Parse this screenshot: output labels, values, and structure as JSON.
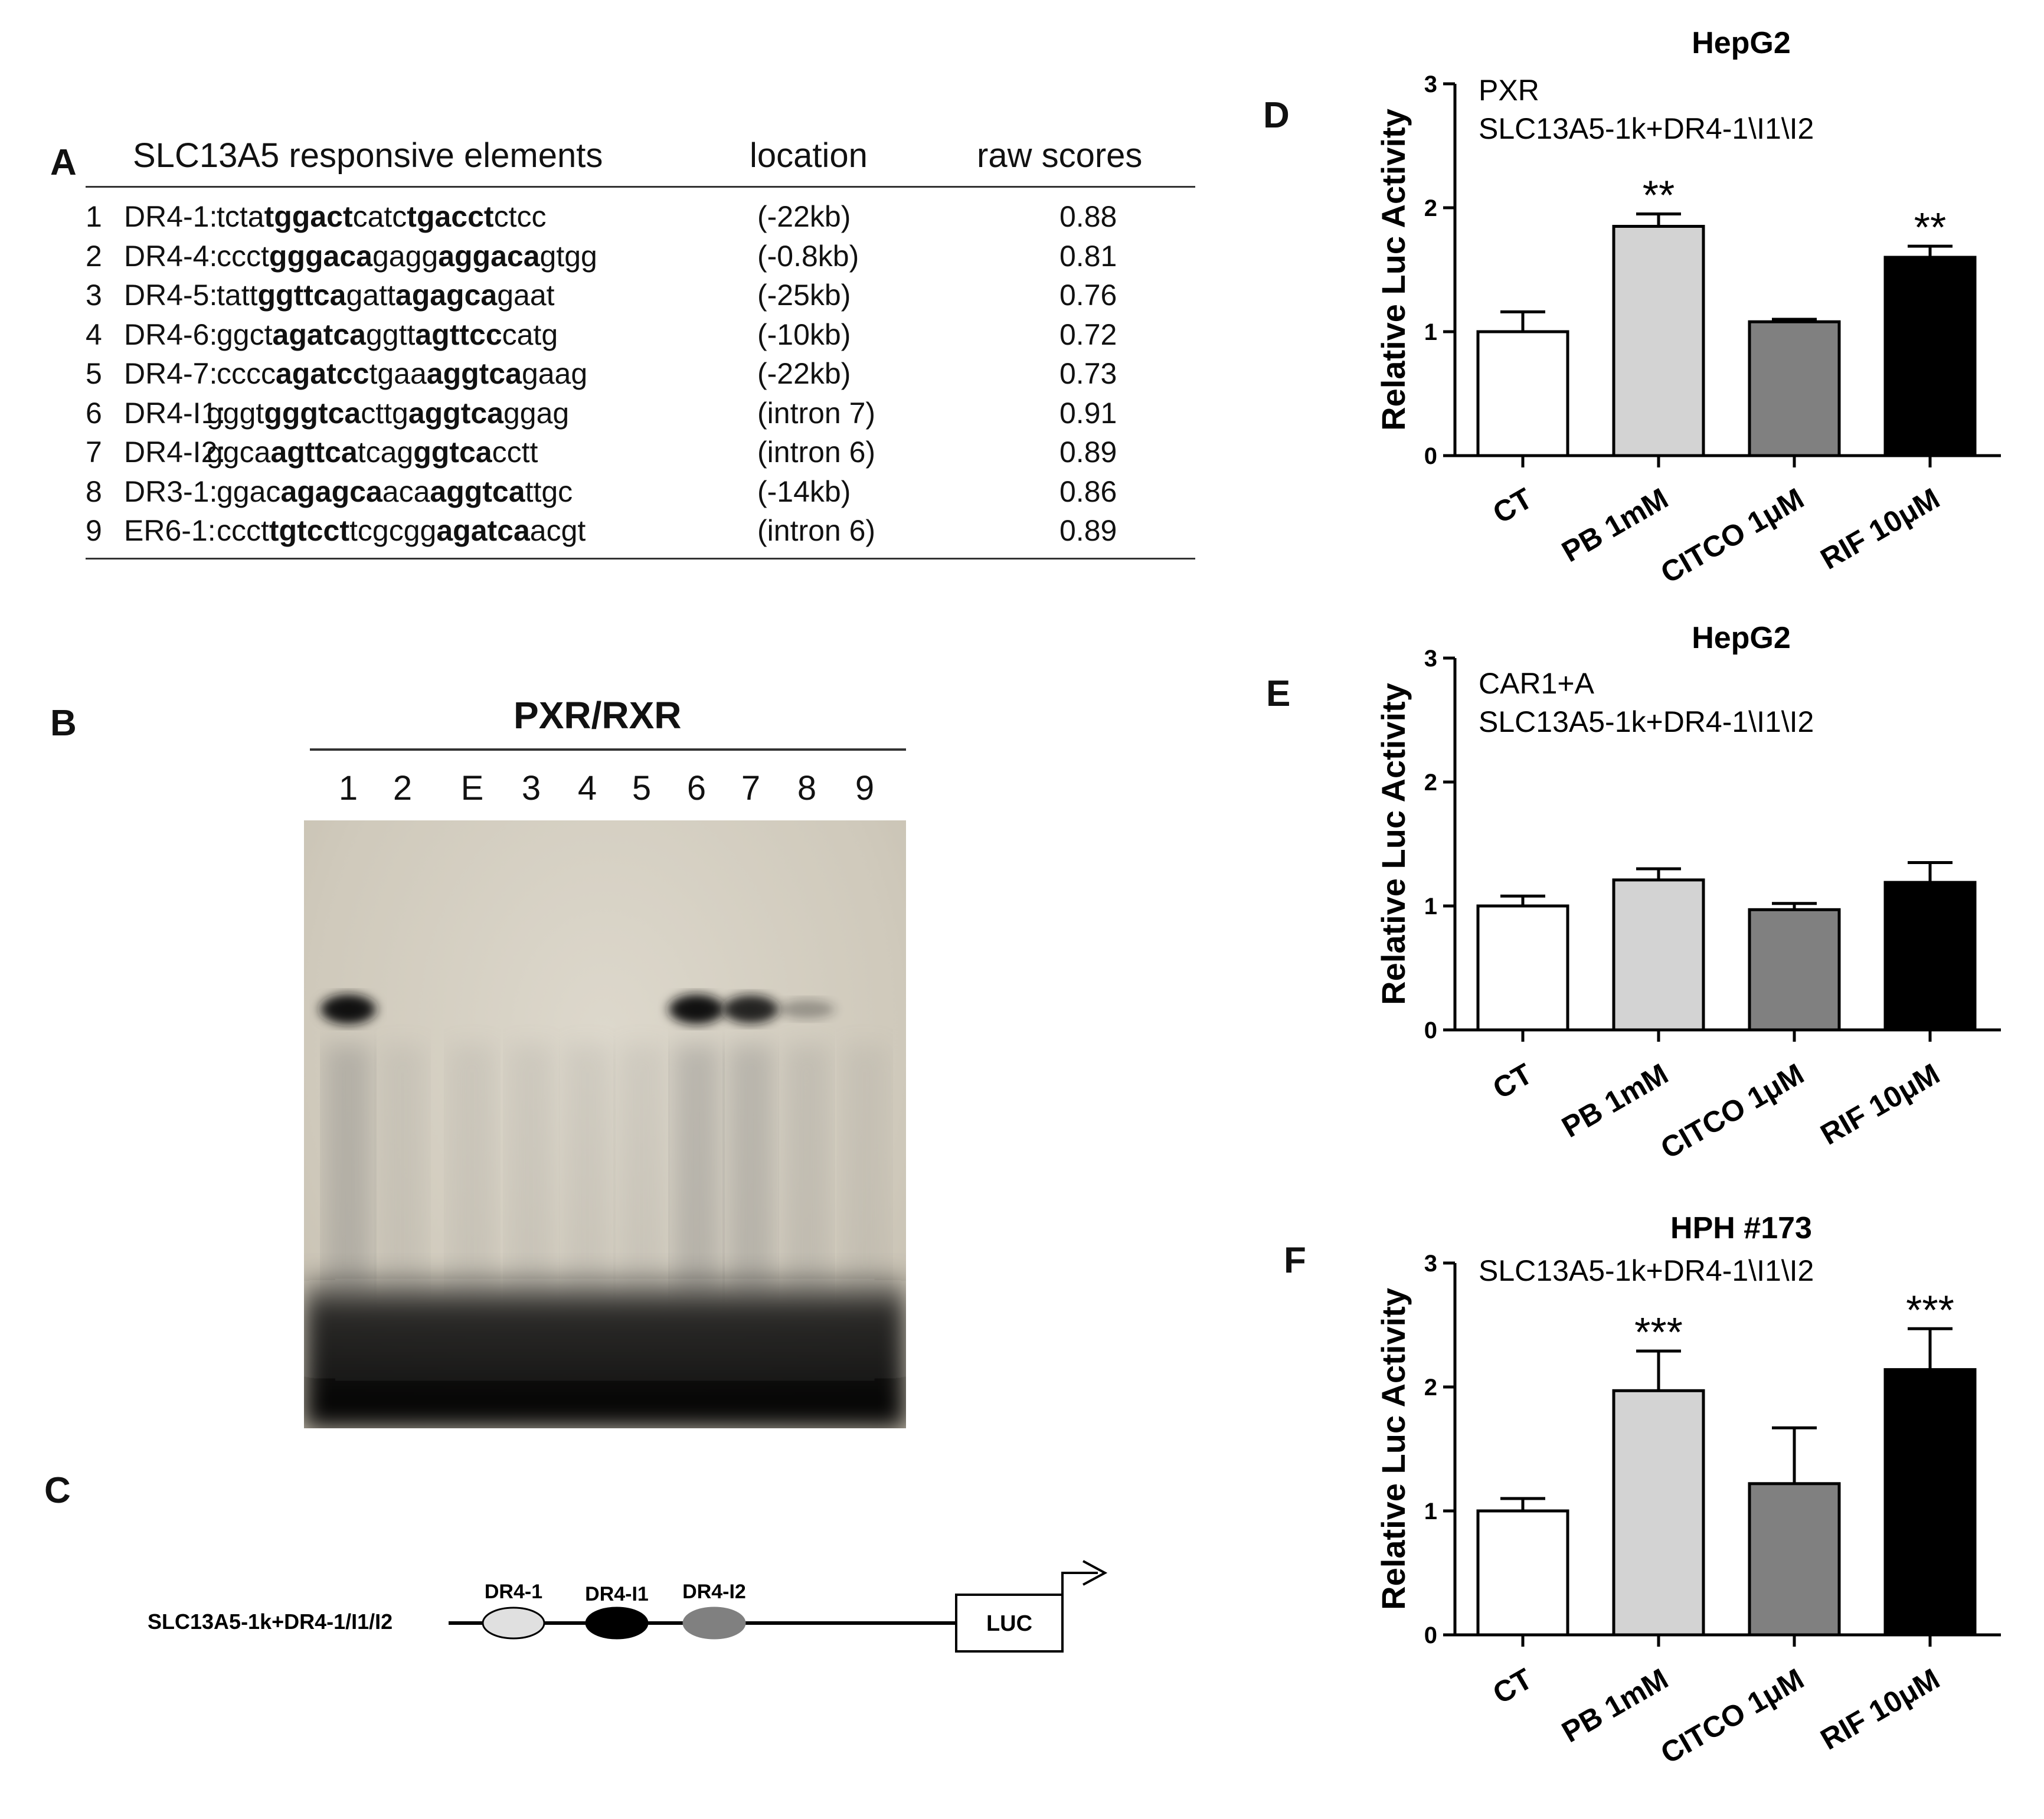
{
  "panels": {
    "A": "A",
    "B": "B",
    "C": "C",
    "D": "D",
    "E": "E",
    "F": "F"
  },
  "table": {
    "headers": {
      "elements": "SLC13A5 responsive elements",
      "location": "location",
      "scores": "raw scores"
    },
    "rows": [
      {
        "num": "1",
        "name": "DR4-1:",
        "seq": [
          [
            "tcta",
            false
          ],
          [
            "tggact",
            true
          ],
          [
            "catc",
            false
          ],
          [
            "tgacct",
            true
          ],
          [
            "ctcc",
            false
          ]
        ],
        "location": "(-22kb)",
        "score": "0.88"
      },
      {
        "num": "2",
        "name": "DR4-4:",
        "seq": [
          [
            "ccct",
            false
          ],
          [
            "gggaca",
            true
          ],
          [
            "gagg",
            false
          ],
          [
            "aggaca",
            true
          ],
          [
            "gtgg",
            false
          ]
        ],
        "location": "(-0.8kb)",
        "score": "0.81"
      },
      {
        "num": "3",
        "name": "DR4-5:",
        "seq": [
          [
            "tatt",
            false
          ],
          [
            "ggttca",
            true
          ],
          [
            "gatt",
            false
          ],
          [
            "agagca",
            true
          ],
          [
            "gaat",
            false
          ]
        ],
        "location": "(-25kb)",
        "score": "0.76"
      },
      {
        "num": "4",
        "name": "DR4-6:",
        "seq": [
          [
            "ggct",
            false
          ],
          [
            "agatca",
            true
          ],
          [
            "ggtt",
            false
          ],
          [
            "agttcc",
            true
          ],
          [
            "catg",
            false
          ]
        ],
        "location": "(-10kb)",
        "score": "0.72"
      },
      {
        "num": "5",
        "name": "DR4-7:",
        "seq": [
          [
            "cccc",
            false
          ],
          [
            "agatcc",
            true
          ],
          [
            "tgaa",
            false
          ],
          [
            "aggtca",
            true
          ],
          [
            "gaag",
            false
          ]
        ],
        "location": "(-22kb)",
        "score": "0.73"
      },
      {
        "num": "6",
        "name": "DR4-I1:",
        "seq": [
          [
            "gggt",
            false
          ],
          [
            "gggtca",
            true
          ],
          [
            "cttg",
            false
          ],
          [
            "aggtca",
            true
          ],
          [
            "ggag",
            false
          ]
        ],
        "location": "(intron 7)",
        "score": "0.91"
      },
      {
        "num": "7",
        "name": "DR4-I2:",
        "seq": [
          [
            "ggca",
            false
          ],
          [
            "agttca",
            true
          ],
          [
            "tcag",
            false
          ],
          [
            "ggtca",
            true
          ],
          [
            "cctt",
            false
          ]
        ],
        "location": "(intron 6)",
        "score": "0.89"
      },
      {
        "num": "8",
        "name": "DR3-1:",
        "seq": [
          [
            "ggac",
            false
          ],
          [
            "agagca",
            true
          ],
          [
            "aca",
            false
          ],
          [
            "aggtca",
            true
          ],
          [
            "ttgc",
            false
          ]
        ],
        "location": "(-14kb)",
        "score": "0.86"
      },
      {
        "num": "9",
        "name": "ER6-1:",
        "seq": [
          [
            "ccct",
            false
          ],
          [
            "tgtcct",
            true
          ],
          [
            "tcgcgg",
            false
          ],
          [
            "agatca",
            true
          ],
          [
            "acgt",
            false
          ]
        ],
        "location": "(intron 6)",
        "score": "0.89"
      }
    ]
  },
  "gel": {
    "title": "PXR/RXR",
    "lanes": [
      "1",
      "2",
      "E",
      "3",
      "4",
      "5",
      "6",
      "7",
      "8",
      "9"
    ],
    "band_intensity": [
      1.0,
      0,
      0,
      0,
      0,
      0,
      1.0,
      0.9,
      0.3,
      0
    ]
  },
  "construct": {
    "label": "SLC13A5-1k+DR4-1/I1/I2",
    "elements": [
      "DR4-1",
      "DR4-I1",
      "DR4-I2"
    ],
    "reporter": "LUC"
  },
  "chart_data": [
    {
      "type": "bar",
      "title": "HepG2",
      "annotation_lines": [
        "PXR",
        "SLC13A5-1k+DR4-1\\I1\\I2"
      ],
      "ylabel": "Relative Luc Activity",
      "xlabel": "",
      "categories": [
        "CT",
        "PB 1mM",
        "CITCO 1μM",
        "RIF 10μM"
      ],
      "values": [
        1.0,
        1.85,
        1.08,
        1.6
      ],
      "errors": [
        0.16,
        0.1,
        0.02,
        0.09
      ],
      "significance": [
        "",
        "**",
        "",
        "**"
      ],
      "colors": [
        "#ffffff",
        "#d3d3d3",
        "#808080",
        "#000000"
      ],
      "ylim": [
        0,
        3
      ],
      "yticks": [
        "0",
        "1",
        "2",
        "3"
      ]
    },
    {
      "type": "bar",
      "title": "HepG2",
      "annotation_lines": [
        "CAR1+A",
        "SLC13A5-1k+DR4-1\\I1\\I2"
      ],
      "ylabel": "Relative Luc Activity",
      "xlabel": "",
      "categories": [
        "CT",
        "PB 1mM",
        "CITCO 1μM",
        "RIF 10μM"
      ],
      "values": [
        1.0,
        1.21,
        0.97,
        1.19
      ],
      "errors": [
        0.08,
        0.09,
        0.05,
        0.16
      ],
      "significance": [
        "",
        "",
        "",
        ""
      ],
      "colors": [
        "#ffffff",
        "#d3d3d3",
        "#808080",
        "#000000"
      ],
      "ylim": [
        0,
        3
      ],
      "yticks": [
        "0",
        "1",
        "2",
        "3"
      ]
    },
    {
      "type": "bar",
      "title": "HPH #173",
      "annotation_lines": [
        "SLC13A5-1k+DR4-1\\I1\\I2"
      ],
      "ylabel": "Relative Luc Activity",
      "xlabel": "",
      "categories": [
        "CT",
        "PB 1mM",
        "CITCO 1μM",
        "RIF 10μM"
      ],
      "values": [
        1.0,
        1.97,
        1.22,
        2.14
      ],
      "errors": [
        0.1,
        0.32,
        0.45,
        0.33
      ],
      "significance": [
        "",
        "***",
        "",
        "***"
      ],
      "colors": [
        "#ffffff",
        "#d3d3d3",
        "#808080",
        "#000000"
      ],
      "ylim": [
        0,
        3
      ],
      "yticks": [
        "0",
        "1",
        "2",
        "3"
      ]
    }
  ]
}
